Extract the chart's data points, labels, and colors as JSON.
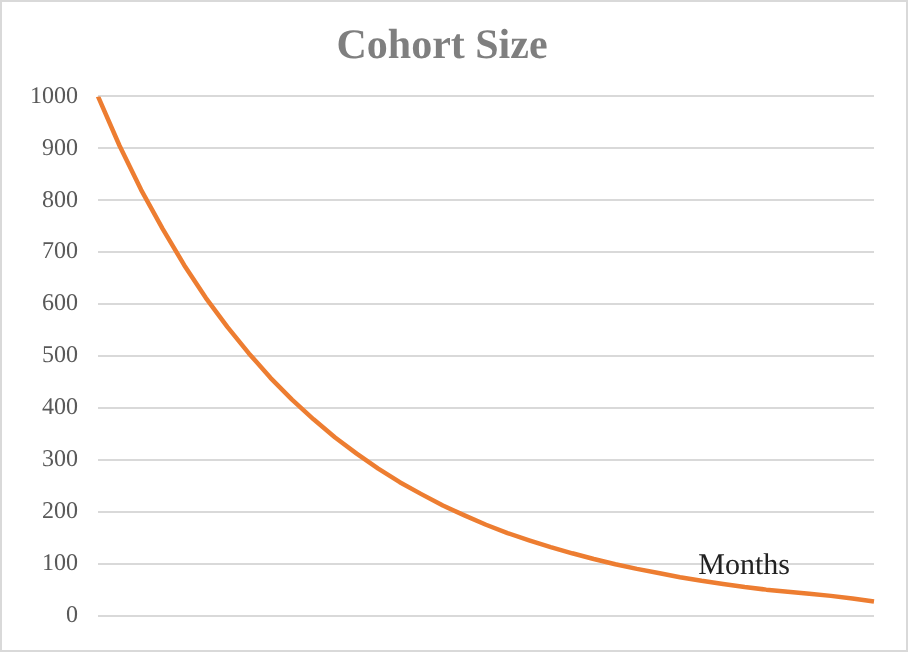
{
  "chart_data": {
    "type": "line",
    "title": "Cohort Size",
    "xlabel": "Months",
    "categories": [
      null,
      null,
      null,
      null,
      null,
      null,
      null,
      null,
      null,
      null,
      null,
      null,
      null,
      null,
      null,
      null,
      null,
      null,
      null,
      null,
      null,
      null,
      null,
      null,
      null,
      null,
      null,
      null,
      null,
      null,
      null,
      null,
      null,
      null,
      null,
      null,
      null
    ],
    "series": [
      {
        "color": "#ed7d31",
        "values": [
          1000,
          905,
          820,
          745,
          675,
          612,
          556,
          505,
          458,
          416,
          378,
          343,
          312,
          283,
          257,
          234,
          212,
          193,
          175,
          159,
          145,
          132,
          120,
          109,
          99,
          90,
          82,
          74,
          67,
          61,
          55,
          50,
          46,
          42,
          38,
          33,
          27
        ]
      }
    ],
    "ylim": [
      0,
      1000
    ],
    "yticks": [
      0,
      100,
      200,
      300,
      400,
      500,
      600,
      700,
      800,
      900,
      1000
    ],
    "grid": "y",
    "legend": false,
    "tick_labels": "y",
    "marker": "none",
    "line_style": "solid"
  }
}
